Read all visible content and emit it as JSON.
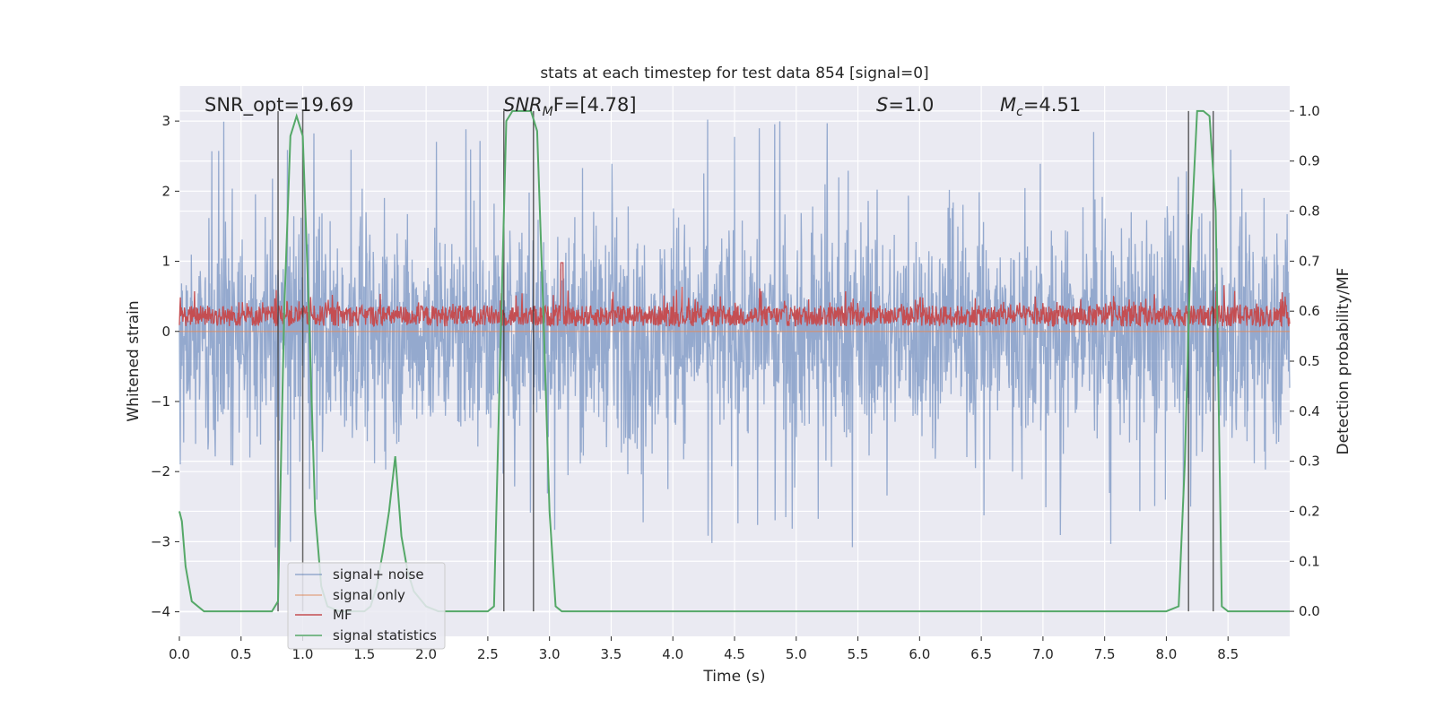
{
  "chart_data": {
    "type": "line",
    "title": "stats at each timestep for test data 854 [signal=0]",
    "xlabel": "Time (s)",
    "ylabel_left": "Whitened strain",
    "ylabel_right": "Detection probability/MF",
    "xlim": [
      0.0,
      9.0
    ],
    "ylim_left": [
      -4.35,
      3.5
    ],
    "ylim_right": [
      -0.05,
      1.05
    ],
    "x_ticks": [
      "0.0",
      "0.5",
      "1.0",
      "1.5",
      "2.0",
      "2.5",
      "3.0",
      "3.5",
      "4.0",
      "4.5",
      "5.0",
      "5.5",
      "6.0",
      "6.5",
      "7.0",
      "7.5",
      "8.0",
      "8.5"
    ],
    "y_ticks_left": [
      "−4",
      "−3",
      "−2",
      "−1",
      "0",
      "1",
      "2",
      "3"
    ],
    "y_ticks_right": [
      "0.0",
      "0.1",
      "0.2",
      "0.3",
      "0.4",
      "0.5",
      "0.6",
      "0.7",
      "0.8",
      "0.9",
      "1.0"
    ],
    "annotations": {
      "snr_opt": "SNR_opt=19.69",
      "snr_mf_base": "SNR",
      "snr_mf_sub": "M",
      "snr_mf_rest": "F=[4.78]",
      "s_italic": "S",
      "s_rest": "=1.0",
      "mc_base": "M",
      "mc_sub": "c",
      "mc_rest": "=4.51"
    },
    "grid": true,
    "legend_position": "lower-left",
    "series": [
      {
        "name": "signal+ noise",
        "axis": "left",
        "color": "#4c72b0",
        "description_values": "noisy whitened strain spanning roughly -3.3 to 3.1 across 0-9 s",
        "envelope": {
          "typical_low": -1.6,
          "typical_high": 1.6,
          "min": -3.3,
          "max": 3.1
        }
      },
      {
        "name": "signal only",
        "axis": "left",
        "color": "#dd8452",
        "values_constant": 0.0
      },
      {
        "name": "MF",
        "axis": "left",
        "color": "#c44e52",
        "envelope": {
          "low": 0.02,
          "high": 0.6,
          "max": 0.98
        }
      },
      {
        "name": "signal statistics",
        "axis": "right",
        "color": "#55a868",
        "x": [
          0.0,
          0.02,
          0.05,
          0.1,
          0.2,
          0.3,
          0.5,
          0.7,
          0.75,
          0.8,
          0.85,
          0.9,
          0.95,
          1.0,
          1.05,
          1.1,
          1.15,
          1.2,
          1.3,
          1.4,
          1.5,
          1.55,
          1.6,
          1.65,
          1.7,
          1.75,
          1.8,
          1.85,
          1.9,
          2.0,
          2.1,
          2.3,
          2.5,
          2.55,
          2.6,
          2.65,
          2.7,
          2.75,
          2.8,
          2.85,
          2.9,
          2.95,
          3.0,
          3.05,
          3.1,
          3.3,
          4.0,
          5.0,
          6.0,
          7.0,
          8.0,
          8.1,
          8.15,
          8.2,
          8.25,
          8.3,
          8.35,
          8.4,
          8.45,
          8.5,
          8.6,
          8.7,
          8.8,
          9.0
        ],
        "values": [
          0.2,
          0.18,
          0.09,
          0.02,
          0.0,
          0.0,
          0.0,
          0.0,
          0.0,
          0.02,
          0.6,
          0.95,
          0.99,
          0.95,
          0.6,
          0.2,
          0.05,
          0.01,
          0.0,
          0.0,
          0.0,
          0.01,
          0.05,
          0.12,
          0.2,
          0.31,
          0.15,
          0.08,
          0.04,
          0.01,
          0.0,
          0.0,
          0.0,
          0.01,
          0.5,
          0.98,
          1.0,
          1.0,
          1.0,
          1.0,
          0.96,
          0.6,
          0.2,
          0.01,
          0.0,
          0.0,
          0.0,
          0.0,
          0.0,
          0.0,
          0.0,
          0.01,
          0.3,
          0.75,
          1.0,
          1.0,
          0.99,
          0.8,
          0.01,
          0.0,
          0.0,
          0.0,
          0.0,
          0.0
        ]
      }
    ],
    "vertical_markers": [
      0.8,
      1.0,
      2.63,
      2.87,
      8.18,
      8.38
    ]
  },
  "legend": {
    "items": [
      {
        "label": "signal+ noise",
        "color": "#4c72b0",
        "alpha": 0.55
      },
      {
        "label": "signal only",
        "color": "#dd8452",
        "alpha": 0.6
      },
      {
        "label": "MF",
        "color": "#c44e52",
        "alpha": 1.0
      },
      {
        "label": "signal statistics",
        "color": "#55a868",
        "alpha": 1.0
      }
    ]
  }
}
